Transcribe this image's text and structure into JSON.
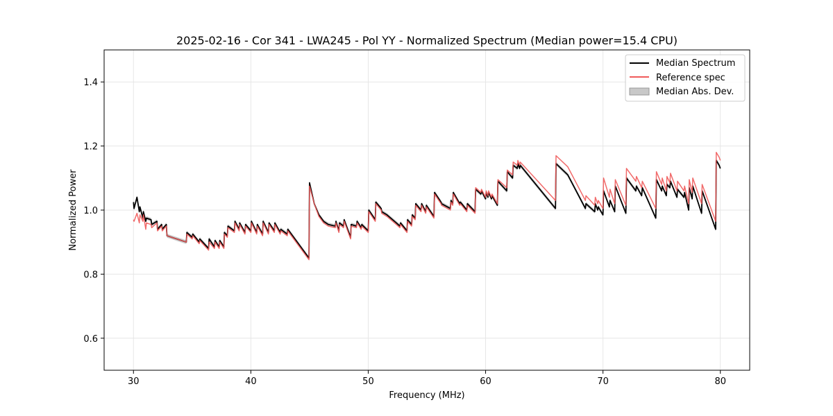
{
  "chart_data": {
    "type": "line",
    "title": "2025-02-16 - Cor 341 - LWA245 - Pol YY - Normalized Spectrum (Median power=15.4 CPU)",
    "xlabel": "Frequency (MHz)",
    "ylabel": "Normalized Power",
    "xlim": [
      27.5,
      82.5
    ],
    "ylim": [
      0.5,
      1.5
    ],
    "xticks": [
      30,
      40,
      50,
      60,
      70,
      80
    ],
    "yticks": [
      0.6,
      0.8,
      1.0,
      1.2,
      1.4
    ],
    "xtick_labels": [
      "30",
      "40",
      "50",
      "60",
      "70",
      "80"
    ],
    "ytick_labels": [
      "0.6",
      "0.8",
      "1.0",
      "1.2",
      "1.4"
    ],
    "grid": true,
    "legend_position": "top-right",
    "legend": [
      {
        "label": "Median Spectrum",
        "kind": "line",
        "color": "#000000"
      },
      {
        "label": "Reference spec",
        "kind": "line",
        "color": "#f05a5a"
      },
      {
        "label": "Median Abs. Dev.",
        "kind": "patch",
        "color": "#c8c8c8"
      }
    ],
    "band_halfwidth": 0.006,
    "series": [
      {
        "name": "Median Spectrum",
        "color": "#000000",
        "x": [
          30.0,
          30.05,
          30.3,
          30.5,
          30.55,
          30.8,
          30.85,
          31.05,
          31.1,
          31.5,
          31.55,
          32.0,
          32.05,
          32.4,
          32.45,
          32.8,
          32.85,
          34.5,
          34.55,
          35.0,
          35.05,
          35.6,
          35.65,
          36.4,
          36.45,
          36.9,
          36.95,
          37.3,
          37.35,
          37.7,
          37.75,
          38.0,
          38.05,
          38.6,
          38.65,
          39.0,
          39.05,
          39.5,
          39.55,
          40.0,
          40.05,
          40.5,
          40.55,
          41.0,
          41.05,
          41.5,
          41.55,
          42.0,
          42.05,
          42.5,
          42.55,
          43.1,
          43.15,
          44.95,
          45.0,
          45.4,
          45.8,
          46.2,
          46.6,
          47.2,
          47.25,
          47.5,
          47.55,
          47.9,
          47.95,
          48.5,
          48.55,
          49.0,
          49.05,
          49.4,
          49.45,
          50.0,
          50.05,
          50.6,
          50.65,
          51.1,
          51.15,
          51.6,
          52.4,
          52.7,
          52.75,
          53.3,
          53.35,
          53.7,
          53.75,
          54.0,
          54.05,
          54.5,
          54.55,
          54.9,
          54.95,
          55.6,
          55.65,
          56.2,
          56.25,
          57.0,
          57.05,
          57.2,
          57.25,
          57.8,
          57.85,
          58.4,
          58.45,
          59.1,
          59.15,
          59.6,
          59.65,
          60.0,
          60.05,
          60.2,
          60.25,
          60.5,
          60.55,
          61.0,
          61.05,
          61.8,
          61.85,
          62.3,
          62.35,
          62.7,
          62.75,
          62.9,
          62.95,
          65.95,
          66.0,
          67.0,
          67.5,
          68.5,
          68.55,
          69.3,
          69.35,
          69.55,
          69.6,
          70.0,
          70.05,
          70.55,
          70.6,
          71.0,
          71.05,
          71.95,
          72.0,
          72.8,
          72.85,
          73.3,
          73.35,
          74.5,
          74.55,
          75.0,
          75.05,
          75.4,
          75.45,
          75.7,
          75.75,
          76.3,
          76.35,
          76.9,
          76.95,
          77.3,
          77.35,
          77.6,
          77.65,
          78.4,
          78.45,
          79.6,
          79.65,
          79.9,
          80.0
        ],
        "y": [
          1.025,
          1.005,
          1.04,
          0.995,
          1.01,
          0.975,
          0.995,
          0.965,
          0.975,
          0.97,
          0.955,
          0.965,
          0.94,
          0.955,
          0.94,
          0.955,
          0.92,
          0.9,
          0.93,
          0.915,
          0.925,
          0.9,
          0.91,
          0.88,
          0.91,
          0.885,
          0.905,
          0.885,
          0.905,
          0.885,
          0.93,
          0.92,
          0.95,
          0.935,
          0.965,
          0.94,
          0.96,
          0.93,
          0.955,
          0.935,
          0.965,
          0.93,
          0.955,
          0.925,
          0.965,
          0.93,
          0.96,
          0.935,
          0.96,
          0.93,
          0.94,
          0.925,
          0.94,
          0.85,
          1.085,
          1.02,
          0.985,
          0.965,
          0.955,
          0.95,
          0.965,
          0.935,
          0.96,
          0.95,
          0.97,
          0.915,
          0.955,
          0.95,
          0.965,
          0.945,
          0.955,
          0.935,
          1.0,
          0.97,
          1.025,
          1.005,
          0.995,
          0.985,
          0.96,
          0.95,
          0.96,
          0.935,
          0.97,
          0.955,
          0.985,
          0.975,
          1.02,
          1.0,
          1.02,
          0.995,
          1.015,
          0.98,
          1.055,
          1.025,
          1.02,
          1.005,
          1.03,
          1.02,
          1.055,
          1.02,
          1.025,
          1.0,
          1.02,
          0.995,
          1.065,
          1.05,
          1.06,
          1.035,
          1.055,
          1.04,
          1.055,
          1.035,
          1.045,
          1.015,
          1.09,
          1.06,
          1.12,
          1.1,
          1.14,
          1.13,
          1.145,
          1.13,
          1.14,
          1.005,
          1.145,
          1.11,
          1.075,
          1.005,
          1.02,
          0.995,
          1.02,
          1.0,
          1.01,
          0.985,
          1.06,
          1.01,
          1.03,
          0.995,
          1.075,
          0.99,
          1.1,
          1.06,
          1.075,
          1.045,
          1.07,
          0.975,
          1.095,
          1.06,
          1.075,
          1.045,
          1.08,
          1.07,
          1.09,
          1.04,
          1.065,
          1.04,
          1.055,
          1.0,
          1.07,
          1.035,
          1.075,
          0.99,
          1.06,
          0.94,
          1.155,
          1.14,
          1.13
        ]
      },
      {
        "name": "Reference spec",
        "color": "#f05a5a",
        "x": [
          30.0,
          30.05,
          30.3,
          30.5,
          30.55,
          30.8,
          30.85,
          31.05,
          31.1,
          31.5,
          31.55,
          32.0,
          32.05,
          32.4,
          32.45,
          32.8,
          32.85,
          34.5,
          34.55,
          35.0,
          35.05,
          35.6,
          35.65,
          36.4,
          36.45,
          36.9,
          36.95,
          37.3,
          37.35,
          37.7,
          37.75,
          38.0,
          38.05,
          38.6,
          38.65,
          39.0,
          39.05,
          39.5,
          39.55,
          40.0,
          40.05,
          40.5,
          40.55,
          41.0,
          41.05,
          41.5,
          41.55,
          42.0,
          42.05,
          42.5,
          42.55,
          43.1,
          43.15,
          44.95,
          45.0,
          45.4,
          45.8,
          46.2,
          46.6,
          47.2,
          47.25,
          47.5,
          47.55,
          47.9,
          47.95,
          48.5,
          48.55,
          49.0,
          49.05,
          49.4,
          49.45,
          50.0,
          50.05,
          50.6,
          50.65,
          51.1,
          51.15,
          51.6,
          52.4,
          52.7,
          52.75,
          53.3,
          53.35,
          53.7,
          53.75,
          54.0,
          54.05,
          54.5,
          54.55,
          54.9,
          54.95,
          55.6,
          55.65,
          56.2,
          56.25,
          57.0,
          57.05,
          57.2,
          57.25,
          57.8,
          57.85,
          58.4,
          58.45,
          59.1,
          59.15,
          59.6,
          59.65,
          60.0,
          60.05,
          60.2,
          60.25,
          60.5,
          60.55,
          61.0,
          61.05,
          61.8,
          61.85,
          62.3,
          62.35,
          62.7,
          62.75,
          62.9,
          62.95,
          65.95,
          66.0,
          67.0,
          67.5,
          68.5,
          68.55,
          69.3,
          69.35,
          69.55,
          69.6,
          70.0,
          70.05,
          70.55,
          70.6,
          71.0,
          71.05,
          71.95,
          72.0,
          72.8,
          72.85,
          73.3,
          73.35,
          74.5,
          74.55,
          75.0,
          75.05,
          75.4,
          75.45,
          75.7,
          75.75,
          76.3,
          76.35,
          76.9,
          76.95,
          77.3,
          77.35,
          77.6,
          77.65,
          78.4,
          78.45,
          79.6,
          79.65,
          79.9,
          80.0
        ],
        "y": [
          0.97,
          0.965,
          0.99,
          0.96,
          0.985,
          0.965,
          0.985,
          0.94,
          0.96,
          0.955,
          0.945,
          0.96,
          0.935,
          0.95,
          0.935,
          0.95,
          0.92,
          0.9,
          0.925,
          0.91,
          0.92,
          0.895,
          0.905,
          0.875,
          0.9,
          0.88,
          0.9,
          0.88,
          0.9,
          0.88,
          0.925,
          0.915,
          0.945,
          0.93,
          0.96,
          0.935,
          0.955,
          0.925,
          0.95,
          0.93,
          0.96,
          0.925,
          0.95,
          0.92,
          0.96,
          0.925,
          0.955,
          0.93,
          0.955,
          0.925,
          0.935,
          0.92,
          0.935,
          0.845,
          1.075,
          1.02,
          0.98,
          0.96,
          0.95,
          0.945,
          0.96,
          0.93,
          0.955,
          0.945,
          0.965,
          0.91,
          0.95,
          0.945,
          0.96,
          0.94,
          0.95,
          0.93,
          0.995,
          0.965,
          1.02,
          1.0,
          0.99,
          0.98,
          0.955,
          0.945,
          0.955,
          0.93,
          0.965,
          0.95,
          0.98,
          0.97,
          1.015,
          0.995,
          1.015,
          0.99,
          1.01,
          0.975,
          1.05,
          1.02,
          1.015,
          1.0,
          1.025,
          1.015,
          1.05,
          1.015,
          1.02,
          0.995,
          1.015,
          0.99,
          1.07,
          1.055,
          1.065,
          1.04,
          1.06,
          1.045,
          1.06,
          1.04,
          1.05,
          1.02,
          1.095,
          1.07,
          1.125,
          1.11,
          1.15,
          1.14,
          1.155,
          1.14,
          1.15,
          1.03,
          1.17,
          1.135,
          1.1,
          1.03,
          1.045,
          1.015,
          1.04,
          1.02,
          1.03,
          1.005,
          1.1,
          1.04,
          1.065,
          1.02,
          1.095,
          1.015,
          1.13,
          1.09,
          1.105,
          1.07,
          1.09,
          1.005,
          1.12,
          1.08,
          1.1,
          1.06,
          1.105,
          1.085,
          1.115,
          1.06,
          1.09,
          1.06,
          1.075,
          1.02,
          1.095,
          1.055,
          1.1,
          1.02,
          1.08,
          0.965,
          1.18,
          1.165,
          1.155
        ]
      }
    ]
  }
}
